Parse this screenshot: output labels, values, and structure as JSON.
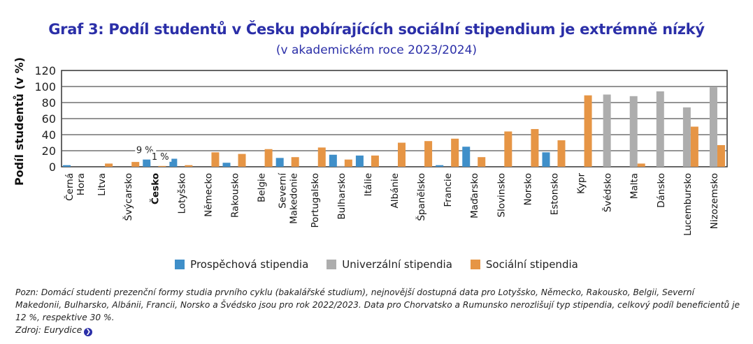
{
  "title": "Graf 3: Podíl studentů v Česku pobírajících sociální stipendium je extrémně nízký",
  "subtitle": "(v akademickém roce 2023/2024)",
  "chart_data": {
    "type": "bar",
    "ylabel": "Podíl studentů (v %)",
    "ylim": [
      0,
      120
    ],
    "yticks": [
      "0",
      "20",
      "40",
      "60",
      "80",
      "100",
      "120"
    ],
    "grid": true,
    "legend_position": "bottom",
    "categories": [
      "Černá Hora",
      "Litva",
      "Švýcarsko",
      "Česko",
      "Lotyšsko",
      "Německo",
      "Rakousko",
      "Belgie",
      "Severní Makedonie",
      "Portugalsko",
      "Bulharsko",
      "Itálie",
      "Albánie",
      "Španělsko",
      "Francie",
      "Maďarsko",
      "Slovinsko",
      "Norsko",
      "Estonsko",
      "Kypr",
      "Švédsko",
      "Malta",
      "Dánsko",
      "Lucembursko",
      "Nizozemsko"
    ],
    "highlight_category": "Česko",
    "series": [
      {
        "name": "Prospěchová stipendia",
        "color": "#3f8fc9",
        "values": [
          2,
          0,
          0,
          9,
          10,
          0,
          5,
          0,
          11,
          0,
          15,
          14,
          0,
          0,
          2,
          25,
          0,
          0,
          18,
          0,
          0,
          0,
          0,
          0,
          0
        ]
      },
      {
        "name": "Univerzální stipendia",
        "color": "#adadad",
        "values": [
          0,
          0,
          0,
          0,
          0,
          0,
          0,
          0,
          0,
          0,
          1,
          0,
          0,
          0,
          0,
          0,
          0,
          0,
          0,
          0,
          90,
          88,
          94,
          74,
          99
        ]
      },
      {
        "name": "Sociální stipendia",
        "color": "#e69545",
        "values": [
          0,
          4,
          6,
          1,
          2,
          18,
          16,
          22,
          12,
          24,
          9,
          14,
          30,
          32,
          35,
          12,
          44,
          47,
          33,
          89,
          0,
          4,
          0,
          50,
          27
        ]
      }
    ],
    "annotations": [
      {
        "category": "Česko",
        "series": "Prospěchová stipendia",
        "text": "9 %"
      },
      {
        "category": "Česko",
        "series": "Sociální stipendia",
        "text": "1 %"
      }
    ]
  },
  "note": "Pozn: Domácí studenti prezenční formy studia prvního cyklu (bakalářské studium), nejnovější dostupná data pro Lotyšsko, Německo, Rakousko, Belgii, Severní Makedonii, Bulharsko, Albánii, Francii, Norsko a Švédsko jsou pro rok 2022/2023. Data pro Chorvatsko a Rumunsko nerozlišují typ stipendia, celkový podíl beneficientů je 12 %, respektive 30 %.",
  "source_label": "Zdroj:",
  "source_link": "Eurydice"
}
